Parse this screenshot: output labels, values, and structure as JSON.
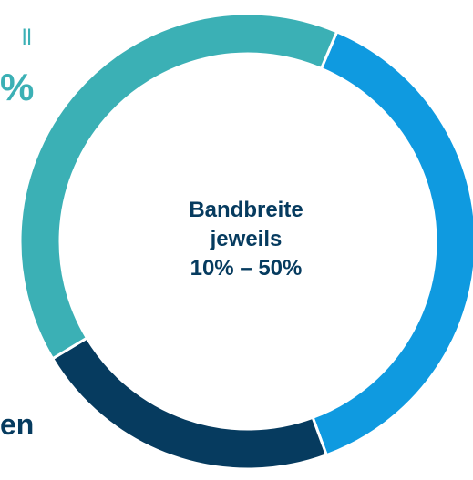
{
  "colors": {
    "teal": "#3bb0b5",
    "blue": "#0f9ae0",
    "navy": "#063b5f",
    "text": "#063b5f",
    "separator": "#ffffff"
  },
  "chart_data": {
    "type": "pie",
    "variant": "donut",
    "title": "",
    "center_label": [
      "Bandbreite",
      "jeweils",
      "10% – 50%"
    ],
    "partial_labels": {
      "top_left_line1": "ll",
      "top_left_line2": "%",
      "bottom_left": "en"
    },
    "slices": [
      {
        "value": 38,
        "color": "#0f9ae0"
      },
      {
        "value": 22,
        "color": "#063b5f"
      },
      {
        "value": 40,
        "color": "#3bb0b5"
      }
    ]
  }
}
